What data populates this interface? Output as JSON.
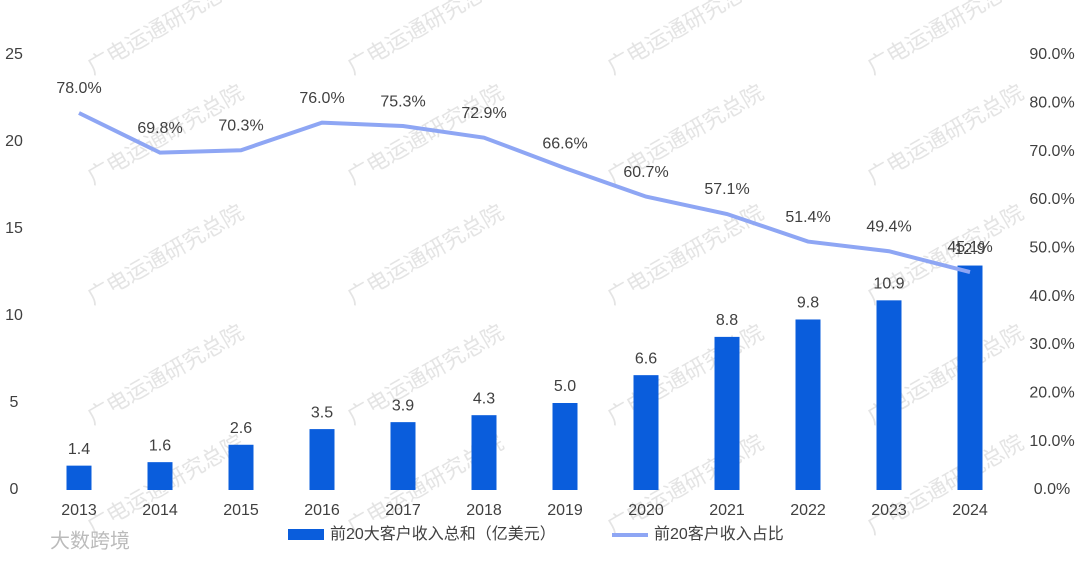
{
  "chart_data": {
    "type": "bar_line",
    "categories": [
      "2013",
      "2014",
      "2015",
      "2016",
      "2017",
      "2018",
      "2019",
      "2020",
      "2021",
      "2022",
      "2023",
      "2024"
    ],
    "series": [
      {
        "name": "前20大客户收入总和（亿美元）",
        "type": "bar",
        "color": "#0a5ddc",
        "values": [
          1.4,
          1.6,
          2.6,
          3.5,
          3.9,
          4.3,
          5.0,
          6.6,
          8.8,
          9.8,
          10.9,
          12.9
        ],
        "value_labels": [
          "1.4",
          "1.6",
          "2.6",
          "3.5",
          "3.9",
          "4.3",
          "5.0",
          "6.6",
          "8.8",
          "9.8",
          "10.9",
          "12.9"
        ]
      },
      {
        "name": "前20客户收入占比",
        "type": "line",
        "axis": "y2",
        "color": "#8ea6f4",
        "values": [
          78.0,
          69.8,
          70.3,
          76.0,
          75.3,
          72.9,
          66.6,
          60.7,
          57.1,
          51.4,
          49.4,
          45.1
        ],
        "value_labels": [
          "78.0%",
          "69.8%",
          "70.3%",
          "76.0%",
          "75.3%",
          "72.9%",
          "66.6%",
          "60.7%",
          "57.1%",
          "51.4%",
          "49.4%",
          "45.1%"
        ]
      }
    ],
    "ylim": [
      0,
      25
    ],
    "yticks": [
      0,
      5,
      10,
      15,
      20,
      25
    ],
    "y2lim": [
      0,
      90
    ],
    "y2ticks": [
      {
        "value": 0,
        "label": "0.0%"
      },
      {
        "value": 10,
        "label": "10.0%"
      },
      {
        "value": 20,
        "label": "20.0%"
      },
      {
        "value": 30,
        "label": "30.0%"
      },
      {
        "value": 40,
        "label": "40.0%"
      },
      {
        "value": 50,
        "label": "50.0%"
      },
      {
        "value": 60,
        "label": "60.0%"
      },
      {
        "value": 70,
        "label": "70.0%"
      },
      {
        "value": 80,
        "label": "80.0%"
      },
      {
        "value": 90,
        "label": "90.0%"
      }
    ],
    "grid": false,
    "legend": "bottom",
    "watermark": "广电运通研究总院",
    "logo": "大数跨境"
  }
}
